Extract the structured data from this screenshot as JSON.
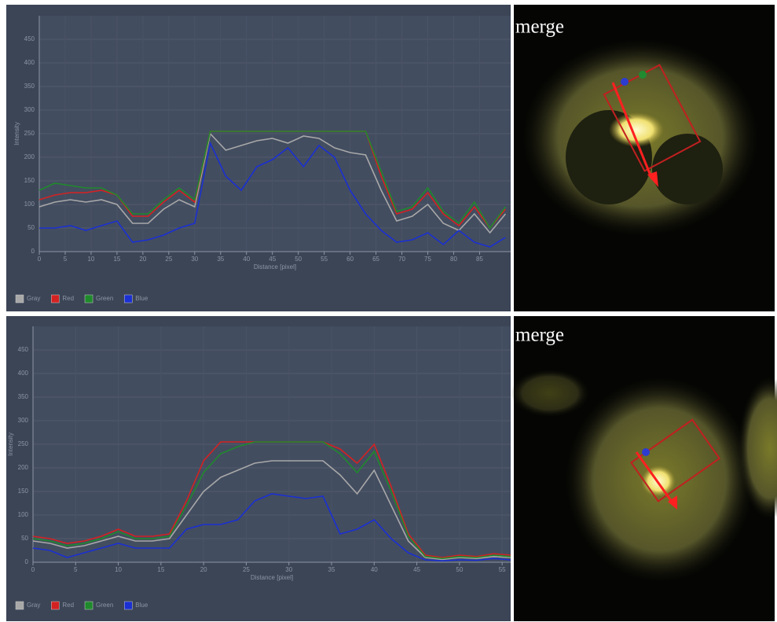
{
  "chart_data": [
    {
      "type": "line",
      "x_label": "Distance [pixel]",
      "y_label": "Intensity",
      "x": [
        0,
        3,
        6,
        9,
        12,
        15,
        18,
        21,
        24,
        27,
        30,
        33,
        36,
        39,
        42,
        45,
        48,
        51,
        54,
        57,
        60,
        63,
        66,
        69,
        72,
        75,
        78,
        81,
        84,
        87,
        90
      ],
      "series": [
        {
          "name": "Gray",
          "color": "#a8a8a8",
          "values": [
            95,
            105,
            110,
            105,
            110,
            100,
            60,
            60,
            90,
            110,
            95,
            250,
            215,
            225,
            235,
            240,
            230,
            245,
            240,
            220,
            210,
            205,
            130,
            65,
            75,
            100,
            60,
            45,
            80,
            40,
            80
          ]
        },
        {
          "name": "Red",
          "color": "#d42222",
          "values": [
            110,
            120,
            125,
            125,
            130,
            120,
            75,
            75,
            105,
            130,
            105,
            255,
            255,
            255,
            255,
            255,
            255,
            255,
            255,
            255,
            255,
            255,
            160,
            80,
            90,
            125,
            80,
            55,
            95,
            50,
            90
          ]
        },
        {
          "name": "Green",
          "color": "#1f8a2c",
          "values": [
            130,
            145,
            140,
            135,
            135,
            120,
            80,
            80,
            110,
            135,
            110,
            255,
            255,
            255,
            255,
            255,
            255,
            255,
            255,
            255,
            255,
            255,
            170,
            85,
            95,
            135,
            85,
            60,
            105,
            50,
            95
          ]
        },
        {
          "name": "Blue",
          "color": "#1a30d2",
          "values": [
            50,
            50,
            55,
            45,
            55,
            65,
            20,
            25,
            35,
            50,
            60,
            230,
            160,
            130,
            180,
            195,
            220,
            180,
            225,
            200,
            130,
            80,
            45,
            20,
            25,
            40,
            15,
            45,
            20,
            10,
            30
          ]
        }
      ],
      "xlim": [
        0,
        91
      ],
      "ylim": [
        0,
        500
      ],
      "xticks": [
        0,
        5,
        10,
        15,
        20,
        25,
        30,
        35,
        40,
        45,
        50,
        55,
        60,
        65,
        70,
        75,
        80,
        85
      ],
      "yticks": [
        0,
        50,
        100,
        150,
        200,
        250,
        300,
        350,
        400,
        450
      ],
      "grid": true,
      "legend": "bottom left"
    },
    {
      "type": "line",
      "x_label": "Distance [pixel]",
      "y_label": "Intensity",
      "x": [
        0,
        2,
        4,
        6,
        8,
        10,
        12,
        14,
        16,
        18,
        20,
        22,
        24,
        26,
        28,
        30,
        32,
        34,
        36,
        38,
        40,
        42,
        44,
        46,
        48,
        50,
        52,
        54,
        56
      ],
      "series": [
        {
          "name": "Gray",
          "color": "#a8a8a8",
          "values": [
            45,
            40,
            30,
            35,
            45,
            55,
            45,
            45,
            50,
            100,
            150,
            180,
            195,
            210,
            215,
            215,
            215,
            215,
            185,
            145,
            195,
            120,
            45,
            10,
            6,
            10,
            8,
            12,
            10
          ]
        },
        {
          "name": "Red",
          "color": "#d42222",
          "values": [
            55,
            50,
            40,
            45,
            55,
            70,
            55,
            55,
            60,
            130,
            215,
            255,
            255,
            255,
            255,
            255,
            255,
            255,
            240,
            210,
            250,
            160,
            60,
            15,
            10,
            15,
            12,
            18,
            15
          ]
        },
        {
          "name": "Green",
          "color": "#1f8a2c",
          "values": [
            50,
            45,
            35,
            40,
            50,
            65,
            50,
            50,
            55,
            120,
            190,
            230,
            245,
            255,
            255,
            255,
            255,
            255,
            230,
            190,
            235,
            150,
            55,
            12,
            8,
            12,
            10,
            15,
            12
          ]
        },
        {
          "name": "Blue",
          "color": "#1a30d2",
          "values": [
            30,
            25,
            10,
            20,
            30,
            40,
            30,
            30,
            30,
            70,
            80,
            80,
            90,
            130,
            145,
            140,
            135,
            140,
            60,
            70,
            90,
            50,
            20,
            5,
            3,
            5,
            4,
            8,
            5
          ]
        }
      ],
      "xlim": [
        0,
        56
      ],
      "ylim": [
        0,
        500
      ],
      "xticks": [
        0,
        5,
        10,
        15,
        20,
        25,
        30,
        35,
        40,
        45,
        50,
        55
      ],
      "yticks": [
        0,
        50,
        100,
        150,
        200,
        250,
        300,
        350,
        400,
        450
      ],
      "grid": true,
      "legend": "bottom left"
    }
  ],
  "images": [
    {
      "label": "merge"
    },
    {
      "label": "merge"
    }
  ]
}
